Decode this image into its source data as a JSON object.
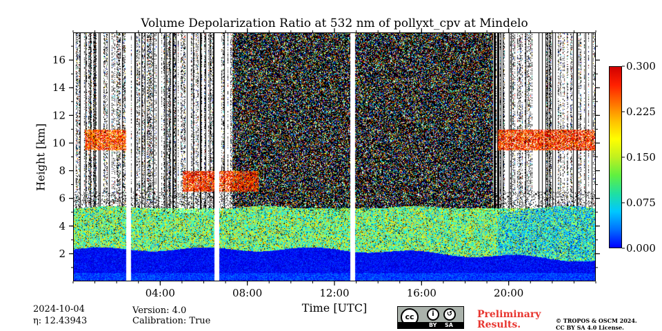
{
  "chart_data": {
    "type": "heatmap",
    "title": "Volume Depolarization Ratio at 532 nm of pollyxt_cpv at Mindelo",
    "xlabel": "Time [UTC]",
    "ylabel": "Height [km]",
    "xlim": [
      0,
      24
    ],
    "ylim": [
      0,
      18
    ],
    "x_ticks": [
      "04:00",
      "08:00",
      "12:00",
      "16:00",
      "20:00"
    ],
    "y_ticks": [
      "2",
      "4",
      "6",
      "8",
      "10",
      "12",
      "14",
      "16"
    ],
    "colorbar": {
      "ticks": [
        "0.000",
        "0.075",
        "0.150",
        "0.225",
        "0.300"
      ],
      "range": [
        0.0,
        0.3
      ],
      "colormap": "jet"
    },
    "layers": [
      {
        "feature": "marine boundary layer",
        "top_km": 2.3,
        "depol": 0.02
      },
      {
        "feature": "dust layer",
        "bottom_km": 2.3,
        "top_km": 5.3,
        "depol": 0.15
      },
      {
        "feature": "elevated aerosol layer",
        "time_range": [
          "05:00",
          "08:30"
        ],
        "bottom_km": 6.5,
        "top_km": 8.0,
        "depol": 0.25
      },
      {
        "feature": "cirrus",
        "time_range": [
          "00:30",
          "02:30"
        ],
        "bottom_km": 9.5,
        "top_km": 11.0,
        "depol": 0.24
      },
      {
        "feature": "cirrus",
        "time_range": [
          "19:30",
          "24:00"
        ],
        "bottom_km": 9.5,
        "top_km": 11.0,
        "depol": 0.25
      }
    ],
    "data_gaps": [
      "02:30",
      "06:35",
      "12:50"
    ]
  },
  "footer": {
    "date": "2024-10-04",
    "eta": "η: 12.43943",
    "version": "Version: 4.0",
    "calibration": "Calibration: True",
    "preliminary_line1": "Preliminary",
    "preliminary_line2": "Results.",
    "license_line1": "© TROPOS & OSCM 2024.",
    "license_line2": "CC BY SA 4.0 License.",
    "cc_by": "BY",
    "cc_sa": "SA",
    "cc_logo": "cc"
  }
}
